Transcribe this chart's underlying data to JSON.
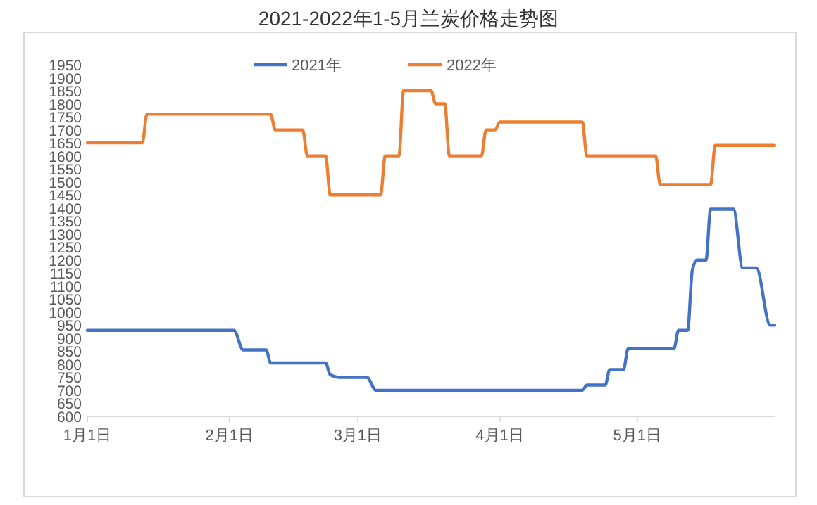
{
  "chart_data": {
    "type": "line",
    "title": "2021-2022年1-5月兰炭价格走势图",
    "xlim": [
      "--01-01",
      "--05-31"
    ],
    "xticks": [
      {
        "value": "--01-01",
        "label": "1月1日"
      },
      {
        "value": "--02-01",
        "label": "2月1日"
      },
      {
        "value": "--03-01",
        "label": "3月1日"
      },
      {
        "value": "--04-01",
        "label": "4月1日"
      },
      {
        "value": "--05-01",
        "label": "5月1日"
      }
    ],
    "ylim": [
      600,
      1950
    ],
    "yticks": [
      600,
      650,
      700,
      750,
      800,
      850,
      900,
      950,
      1000,
      1050,
      1100,
      1150,
      1200,
      1250,
      1300,
      1350,
      1400,
      1450,
      1500,
      1550,
      1600,
      1650,
      1700,
      1750,
      1800,
      1850,
      1900,
      1950
    ],
    "legend": "top",
    "grid": false,
    "marker": "none",
    "line_style": "solid",
    "series": [
      {
        "name": "2021年",
        "color": "#4472c4",
        "x": [
          "--01-01",
          "--02-02",
          "--02-04",
          "--02-09",
          "--02-10",
          "--02-22",
          "--02-23",
          "--02-25",
          "--03-03",
          "--03-05",
          "--04-19",
          "--04-20",
          "--04-24",
          "--04-25",
          "--04-28",
          "--04-29",
          "--05-09",
          "--05-10",
          "--05-12",
          "--05-13",
          "--05-14",
          "--05-16",
          "--05-17",
          "--05-22",
          "--05-24",
          "--05-27",
          "--05-30",
          "--05-31"
        ],
        "values": [
          930,
          930,
          855,
          855,
          805,
          805,
          760,
          750,
          750,
          700,
          700,
          720,
          720,
          780,
          780,
          860,
          860,
          930,
          930,
          1160,
          1200,
          1200,
          1395,
          1395,
          1170,
          1170,
          950,
          950
        ]
      },
      {
        "name": "2022年",
        "color": "#ed7d31",
        "x": [
          "--01-01",
          "--01-13",
          "--01-14",
          "--02-10",
          "--02-11",
          "--02-17",
          "--02-18",
          "--02-22",
          "--02-23",
          "--03-06",
          "--03-07",
          "--03-10",
          "--03-11",
          "--03-17",
          "--03-18",
          "--03-20",
          "--03-21",
          "--03-28",
          "--03-29",
          "--03-31",
          "--04-01",
          "--04-19",
          "--04-20",
          "--05-05",
          "--05-06",
          "--05-17",
          "--05-18",
          "--05-31"
        ],
        "values": [
          1650,
          1650,
          1760,
          1760,
          1700,
          1700,
          1600,
          1600,
          1450,
          1450,
          1600,
          1600,
          1850,
          1850,
          1800,
          1800,
          1600,
          1600,
          1700,
          1700,
          1730,
          1730,
          1600,
          1600,
          1490,
          1490,
          1640,
          1640
        ]
      }
    ]
  }
}
